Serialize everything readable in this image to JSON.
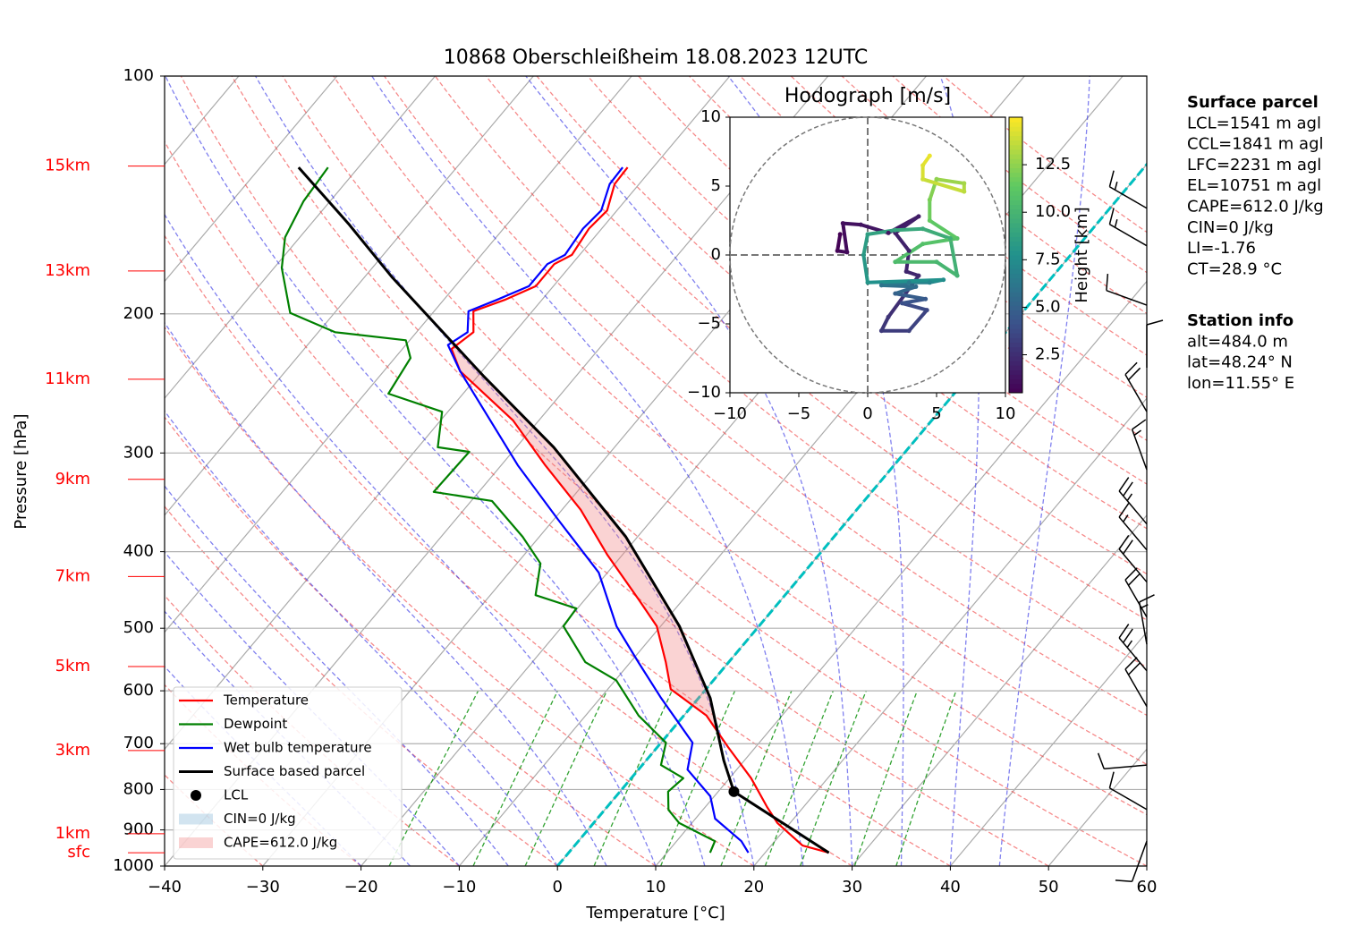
{
  "chart_data": {
    "type": "skewt",
    "title": "10868 Oberschleißheim 18.08.2023 12UTC",
    "x_label": "Temperature [°C]",
    "y_label": "Pressure [hPa]",
    "xlim": [
      -40,
      60
    ],
    "xticks": [
      {
        "value": -40,
        "label": "−40"
      },
      {
        "value": -30,
        "label": "−30"
      },
      {
        "value": -20,
        "label": "−20"
      },
      {
        "value": -10,
        "label": "−10"
      },
      0,
      10,
      20,
      30,
      40,
      50,
      60
    ],
    "ylim": [
      1000,
      100
    ],
    "yticks": [
      100,
      200,
      300,
      400,
      500,
      600,
      700,
      800,
      900,
      1000
    ],
    "log_y": true,
    "grid": true,
    "highlight_isotherm": {
      "value": 0,
      "color": "#00bfbf"
    },
    "series": [
      {
        "name": "Temperature",
        "color": "#ff0000",
        "pressure": [
          962,
          942,
          882,
          842,
          774,
          707,
          645,
          597,
          552,
          497,
          460,
          404,
          354,
          311,
          273,
          236.5,
          221.5,
          211,
          198.5,
          192,
          184.5,
          173,
          168.4,
          156,
          148,
          137,
          130.5
        ],
        "values": [
          26.5,
          23.2,
          18.7,
          16.3,
          12.2,
          7.2,
          2.3,
          -3.6,
          -6.4,
          -10.4,
          -14.5,
          -21.5,
          -28.1,
          -35.5,
          -42.6,
          -52.2,
          -55.0,
          -54.2,
          -56.0,
          -53.8,
          -51.8,
          -51.8,
          -50.8,
          -51.3,
          -51.0,
          -52.5,
          -52.6
        ]
      },
      {
        "name": "Dewpoint",
        "color": "#008000",
        "pressure": [
          962,
          930,
          882,
          849,
          805,
          774,
          745,
          698,
          645,
          582,
          552,
          497,
          472,
          454,
          414,
          383,
          345,
          336,
          299,
          295,
          266,
          252.4,
          227.5,
          216,
          211,
          199.5,
          175,
          160,
          144,
          130.5
        ],
        "values": [
          14.4,
          13.9,
          8.7,
          6.5,
          4.9,
          5.3,
          1.9,
          0.5,
          -4.6,
          -9.9,
          -14.6,
          -19.9,
          -20.1,
          -25.4,
          -27.6,
          -31.7,
          -37.9,
          -44.6,
          -44.4,
          -48.0,
          -50.6,
          -57.6,
          -58.4,
          -60.4,
          -68.3,
          -74.5,
          -79.2,
          -81.5,
          -82.7,
          -83.1
        ]
      },
      {
        "name": "Wet bulb temperature",
        "color": "#0000ff",
        "pressure": [
          962,
          930,
          871,
          816,
          755,
          698,
          613,
          552,
          497,
          425,
          364,
          311,
          236.5,
          219,
          211,
          198.5,
          192,
          184.5,
          173,
          168.4,
          156,
          148,
          137,
          130.5
        ],
        "values": [
          18.3,
          16.6,
          12.0,
          9.6,
          5.0,
          3.2,
          -3.8,
          -9.2,
          -14.5,
          -20.9,
          -29.6,
          -38.3,
          -52.2,
          -55.7,
          -54.8,
          -56.5,
          -54.6,
          -52.5,
          -52.5,
          -51.5,
          -51.9,
          -51.6,
          -53.0,
          -53.1
        ]
      },
      {
        "name": "Surface based parcel",
        "color": "#000000",
        "parcel": true,
        "pressure": [
          962,
          805,
          735,
          613,
          497,
          383,
          295,
          239.5,
          180,
          153.8,
          130.5
        ],
        "values": [
          26.5,
          11.6,
          7.9,
          1.2,
          -8.1,
          -21.2,
          -36.2,
          -49.5,
          -67.1,
          -76.2,
          -86.1
        ]
      }
    ],
    "lcl": {
      "name": "LCL",
      "pressure": 805,
      "temperature": 11.6
    },
    "cin_label": "CIN=0 J/kg",
    "cape_label": "CAPE=612.0 J/kg",
    "height_labels": [
      {
        "label": "15km",
        "pressure": 130
      },
      {
        "label": "13km",
        "pressure": 176.5
      },
      {
        "label": "11km",
        "pressure": 242
      },
      {
        "label": "9km",
        "pressure": 324
      },
      {
        "label": "7km",
        "pressure": 430
      },
      {
        "label": "5km",
        "pressure": 559
      },
      {
        "label": "3km",
        "pressure": 714
      },
      {
        "label": "1km",
        "pressure": 910
      },
      {
        "label": "sfc",
        "pressure": 962
      }
    ],
    "wind_barbs": {
      "pressure": [
        147,
        164,
        195,
        234,
        266,
        315,
        369,
        398,
        437,
        484,
        524,
        566,
        628,
        745,
        848,
        930
      ],
      "direction": [
        300,
        300,
        290,
        0,
        330,
        340,
        320,
        320,
        320,
        330,
        350,
        320,
        330,
        265,
        300,
        200
      ],
      "speed": [
        15,
        15,
        10,
        10,
        20,
        15,
        25,
        15,
        20,
        20,
        15,
        25,
        20,
        10,
        10,
        10
      ]
    },
    "hodograph": {
      "title": "Hodograph [m/s]",
      "xlim": [
        -10,
        10
      ],
      "ylim": [
        -10,
        10
      ],
      "xticks": [
        {
          "value": -10,
          "label": "−10"
        },
        {
          "value": -5,
          "label": "−5"
        },
        0,
        5,
        10
      ],
      "yticks": [
        {
          "value": -10,
          "label": "−10"
        },
        {
          "value": -5,
          "label": "−5"
        },
        0,
        5,
        10
      ],
      "u": [
        -2,
        -2.2,
        -1.5,
        -1.8,
        -0.5,
        1.5,
        3.7,
        2,
        3,
        2.8,
        3.7,
        1.5,
        1,
        3,
        4.3,
        2.5,
        4.2,
        2,
        3.5,
        1,
        3,
        4.5,
        5.5,
        0,
        -0.3,
        0,
        2,
        4,
        6,
        6.5,
        5,
        2,
        4,
        6.5,
        4.5,
        4.5,
        5,
        7,
        7,
        4,
        4,
        4.5
      ],
      "v": [
        1.5,
        0.3,
        0.2,
        2.3,
        2.2,
        1.6,
        2.8,
        1.6,
        0.3,
        -1.2,
        -1.5,
        -4.5,
        -5.5,
        -5.5,
        -4,
        -3.5,
        -3.2,
        -2.8,
        -2.3,
        -2.2,
        -2,
        -2,
        -1.8,
        -2,
        0,
        1.5,
        1.8,
        1.9,
        1.2,
        -1.5,
        -0.5,
        -0.5,
        0.8,
        1.2,
        2.5,
        4,
        5.5,
        5.2,
        4.6,
        5.5,
        6.5,
        7.2
      ],
      "height": [
        0.5,
        0.7,
        0.9,
        1.1,
        1.3,
        1.5,
        1.7,
        1.9,
        2.0,
        2.1,
        2.3,
        2.8,
        3.0,
        3.3,
        3.6,
        4.0,
        4.5,
        5.0,
        5.5,
        6.0,
        6.5,
        7.0,
        7.5,
        8.0,
        8.3,
        8.6,
        9.0,
        9.3,
        9.6,
        9.9,
        10.2,
        10.5,
        10.8,
        11.0,
        11.5,
        12.0,
        12.5,
        13.0,
        13.5,
        14.0,
        14.3,
        14.6
      ],
      "colorbar": {
        "label": "Height [km]",
        "clim": [
          0.5,
          15.0
        ],
        "ticks": [
          2.5,
          {
            "value": 5,
            "label": "5.0"
          },
          7.5,
          {
            "value": 10,
            "label": "10.0"
          },
          12.5
        ]
      }
    },
    "parcel_info": {
      "title": "Surface parcel",
      "lines": [
        "LCL=1541 m agl",
        "CCL=1841 m agl",
        "LFC=2231 m agl",
        "EL=10751 m agl",
        "CAPE=612.0 J/kg",
        "CIN=0 J/kg",
        "LI=-1.76",
        "CT=28.9 °C"
      ]
    },
    "station_info": {
      "title": "Station info",
      "lines": [
        "alt=484.0 m",
        "lat=48.24° N",
        "lon=11.55° E"
      ]
    }
  }
}
